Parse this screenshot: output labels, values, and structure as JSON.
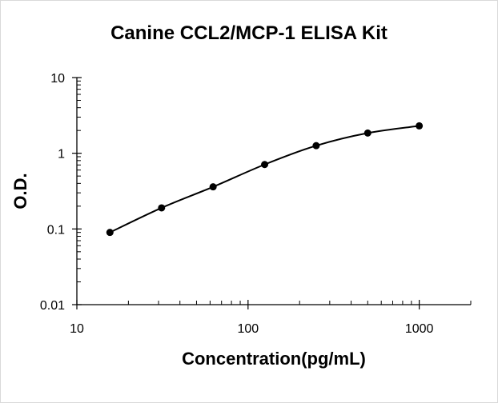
{
  "chart_data": {
    "type": "scatter",
    "title": "Canine CCL2/MCP-1 ELISA Kit",
    "xlabel": "Concentration(pg/mL)",
    "ylabel": "O.D.",
    "x_scale": "log",
    "y_scale": "log",
    "xlim": [
      10,
      2000
    ],
    "ylim": [
      0.01,
      10
    ],
    "x_ticks": [
      "10",
      "100",
      "1000"
    ],
    "y_ticks": [
      "0.01",
      "0.1",
      "1",
      "10"
    ],
    "grid": false,
    "legend": "none",
    "trendline": true,
    "series": [
      {
        "x": [
          15.6,
          31.25,
          62.5,
          125,
          250,
          500,
          1000
        ],
        "y": [
          0.09,
          0.19,
          0.36,
          0.71,
          1.26,
          1.85,
          2.3
        ]
      }
    ]
  },
  "colors": {
    "marker": "#000000",
    "line": "#000000",
    "axis": "#000000"
  }
}
